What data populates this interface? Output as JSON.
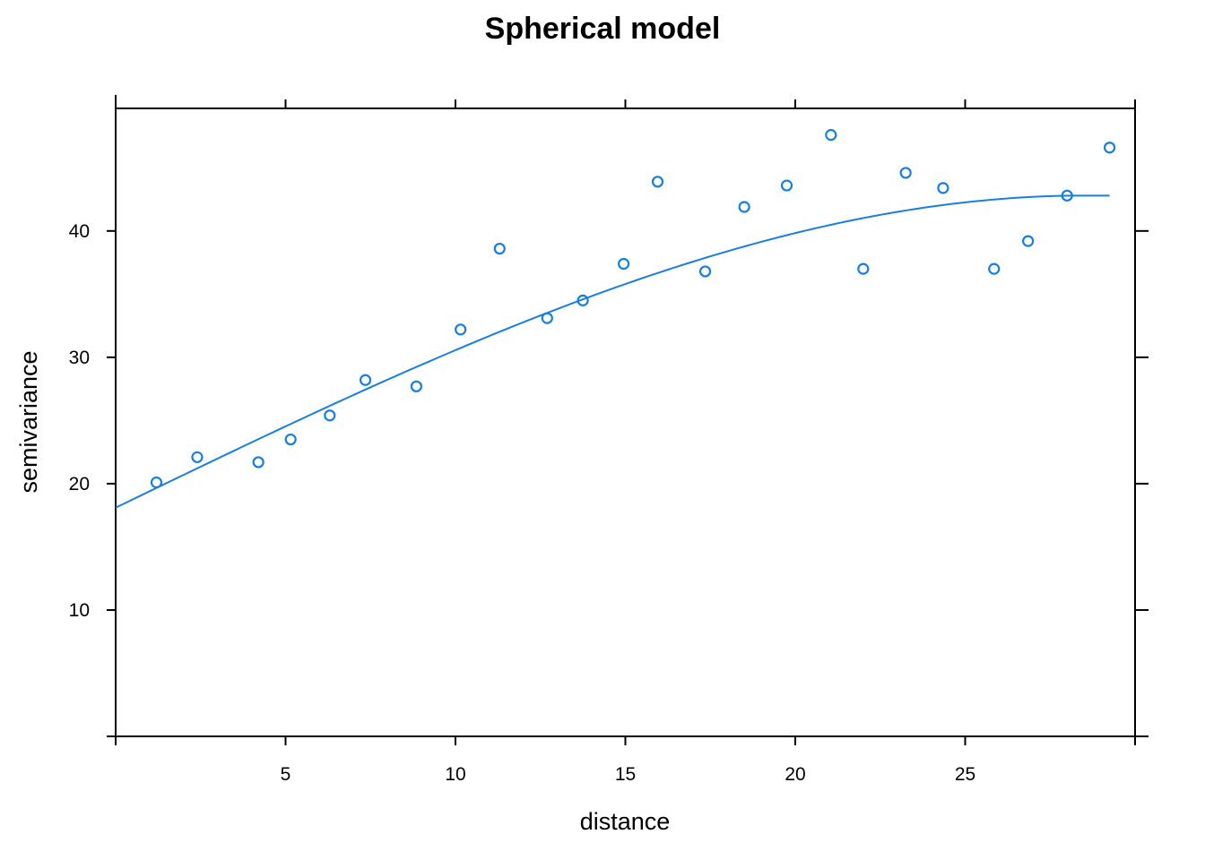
{
  "chart_data": {
    "type": "scatter",
    "title": "Spherical model",
    "xlabel": "distance",
    "ylabel": "semivariance",
    "xlim": [
      0,
      30
    ],
    "ylim": [
      0,
      49.7
    ],
    "xticks": [
      5,
      10,
      15,
      20,
      25
    ],
    "yticks": [
      10,
      20,
      30,
      40
    ],
    "grid": false,
    "legend": "none",
    "color": "#1a7ee0",
    "series": [
      {
        "kind": "points",
        "x": [
          1.2,
          2.4,
          4.2,
          5.15,
          6.3,
          7.35,
          8.85,
          10.15,
          11.3,
          12.7,
          13.75,
          14.95,
          15.95,
          17.35,
          18.5,
          19.75,
          21.05,
          22.0,
          23.25,
          24.35,
          25.85,
          26.85,
          28.0,
          29.25
        ],
        "y": [
          20.1,
          22.1,
          21.7,
          23.5,
          25.4,
          28.2,
          27.7,
          32.2,
          38.6,
          33.1,
          34.5,
          37.4,
          43.9,
          36.8,
          41.9,
          43.6,
          47.6,
          37.0,
          44.6,
          43.4,
          37.0,
          39.2,
          42.8,
          46.6
        ]
      },
      {
        "kind": "fitted-model",
        "model": "spherical",
        "nugget": 18.1,
        "psill": 24.7,
        "range": 28.5,
        "x_from": 0,
        "x_to": 29.25
      }
    ]
  }
}
